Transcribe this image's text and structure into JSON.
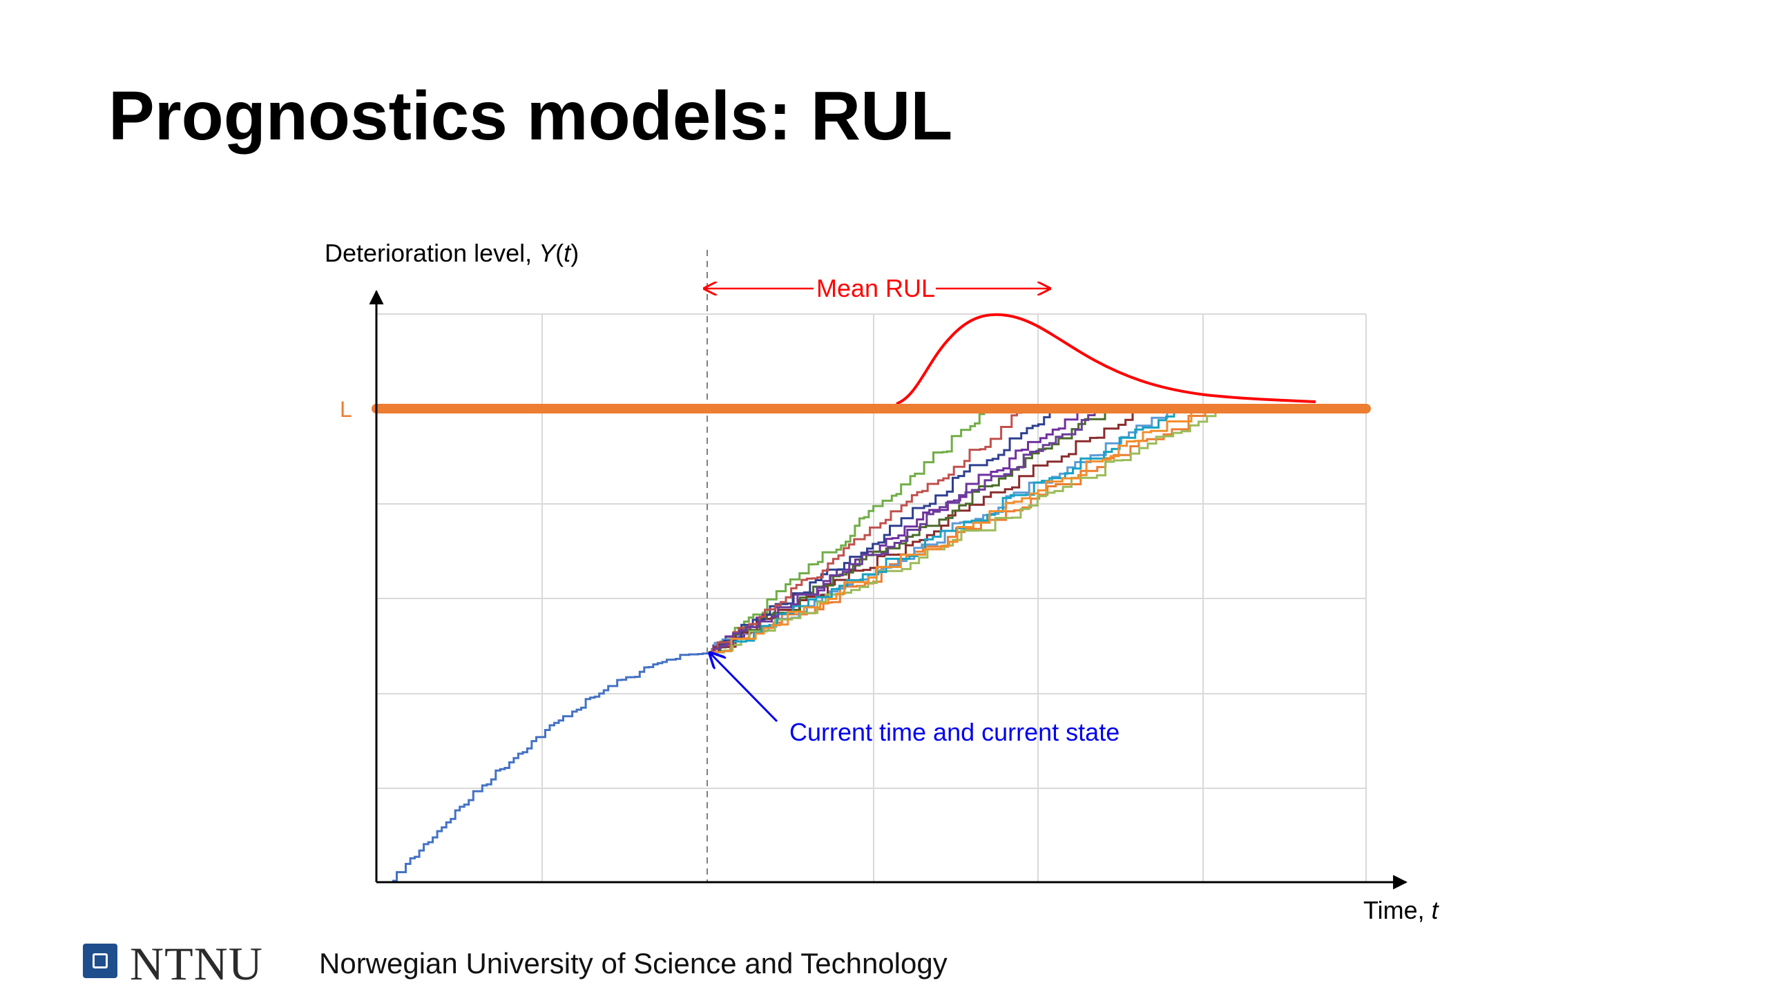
{
  "slide": {
    "title": "Prognostics models: RUL"
  },
  "diagram": {
    "y_axis_label": "Deterioration level, ",
    "y_axis_symbol": "Y",
    "y_axis_paren_open": "(",
    "y_axis_var": "t",
    "y_axis_paren_close": ")",
    "x_axis_label": "Time, ",
    "x_axis_var": "t",
    "threshold_label": "L",
    "mean_rul_label": "Mean RUL",
    "annotation_current": "Current time and current state",
    "colors": {
      "threshold": "#ed7d31",
      "rul_distribution": "#ff0000",
      "history_path": "#4472c4",
      "annotation": "#0000ee",
      "grid": "#d9d9d9",
      "axis": "#000000",
      "simulated_paths": [
        "#70ad47",
        "#7030a0",
        "#ed7d31",
        "#5b9bd5",
        "#8a2b2b",
        "#4b6b2a",
        "#2e3f8f",
        "#c0504d",
        "#9bbb59",
        "#17a2c4",
        "#6a3d9a",
        "#f28e2b"
      ]
    }
  },
  "footer": {
    "logo_text": "NTNU",
    "university": "Norwegian University of Science and Technology"
  }
}
